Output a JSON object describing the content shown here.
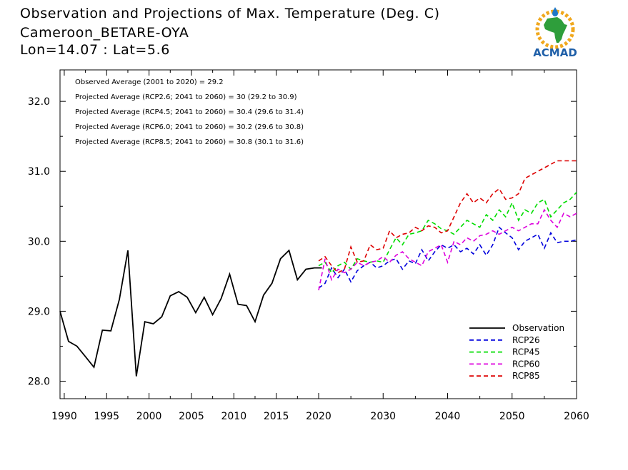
{
  "header": {
    "title": "Observation and Projections of Max. Temperature (Deg. C)",
    "station": "Cameroon_BETARE-OYA",
    "coords": "Lon=14.07 : Lat=5.6"
  },
  "logo": {
    "text": "ACMAD",
    "icon": "africa-sun-logo",
    "colors": {
      "africa": "#2e9e3b",
      "sun": "#f0a81e",
      "text": "#1f5fa8",
      "drop": "#1f78c8"
    }
  },
  "chart_data": {
    "type": "line",
    "xlim": [
      1989.5,
      2060
    ],
    "ylim": [
      27.75,
      32.45
    ],
    "x_ticks": [
      1990,
      1995,
      2000,
      2005,
      2010,
      2015,
      2020,
      2030,
      2040,
      2050,
      2060
    ],
    "x_tick_labels": [
      "1990",
      "1995",
      "2000",
      "2005",
      "2010",
      "2015",
      "2020",
      "2030",
      "2040",
      "2050",
      "2060"
    ],
    "y_ticks": [
      28.0,
      29.0,
      30.0,
      31.0,
      32.0
    ],
    "y_tick_labels": [
      "28.0",
      "29.0",
      "30.0",
      "31.0",
      "32.0"
    ],
    "annotations": [
      "Observed Average (2001 to 2020) = 29.2",
      "Projected Average (RCP2.6; 2041 to 2060) = 30 (29.2 to 30.9)",
      "Projected Average (RCP4.5; 2041 to 2060) = 30.4 (29.6 to 31.4)",
      "Projected Average (RCP6.0; 2041 to 2060) = 30.2 (29.6 to 30.8)",
      "Projected Average (RCP8.5; 2041 to 2060) = 30.8 (30.1 to 31.6)"
    ],
    "legend_position": "bottom-right",
    "series": [
      {
        "name": "Observation",
        "color": "#000000",
        "dash": false,
        "x": [
          1989.5,
          1990.5,
          1991.5,
          1992.5,
          1993.5,
          1994.5,
          1995.5,
          1996.5,
          1997.5,
          1998.5,
          1999.5,
          2000.5,
          2001.5,
          2002.5,
          2003.5,
          2004.5,
          2005.5,
          2006.5,
          2007.5,
          2008.5,
          2009.5,
          2010.5,
          2011.5,
          2012.5,
          2013.5,
          2014.5,
          2015.5,
          2016.5,
          2017.5,
          2018.5,
          2019.5,
          2020.5
        ],
        "values": [
          29.0,
          28.57,
          28.5,
          28.35,
          28.2,
          28.73,
          28.72,
          29.17,
          29.87,
          28.07,
          28.85,
          28.82,
          28.92,
          29.22,
          29.28,
          29.2,
          28.98,
          29.2,
          28.95,
          29.18,
          29.53,
          29.1,
          29.08,
          28.85,
          29.23,
          29.4,
          29.75,
          29.87,
          29.45,
          29.6,
          29.62,
          29.62
        ]
      },
      {
        "name": "RCP26",
        "color": "#0000dd",
        "dash": true,
        "x": [
          2020,
          2021,
          2022,
          2023,
          2024,
          2025,
          2026,
          2027,
          2028,
          2029,
          2030,
          2031,
          2032,
          2033,
          2034,
          2035,
          2036,
          2037,
          2038,
          2039,
          2040,
          2041,
          2042,
          2043,
          2044,
          2045,
          2046,
          2047,
          2048,
          2049,
          2050,
          2051,
          2052,
          2053,
          2054,
          2055,
          2056,
          2057,
          2058,
          2059,
          2060
        ],
        "values": [
          29.33,
          29.4,
          29.62,
          29.48,
          29.6,
          29.42,
          29.58,
          29.65,
          29.7,
          29.62,
          29.65,
          29.72,
          29.75,
          29.6,
          29.72,
          29.68,
          29.88,
          29.72,
          29.85,
          29.95,
          29.9,
          29.95,
          29.85,
          29.9,
          29.82,
          29.95,
          29.8,
          29.95,
          30.2,
          30.12,
          30.05,
          29.88,
          30.0,
          30.05,
          30.1,
          29.9,
          30.12,
          29.98,
          30.0,
          30.0,
          30.02
        ]
      },
      {
        "name": "RCP45",
        "color": "#00dd00",
        "dash": true,
        "x": [
          2020,
          2021,
          2022,
          2023,
          2024,
          2025,
          2026,
          2027,
          2028,
          2029,
          2030,
          2031,
          2032,
          2033,
          2034,
          2035,
          2036,
          2037,
          2038,
          2039,
          2040,
          2041,
          2042,
          2043,
          2044,
          2045,
          2046,
          2047,
          2048,
          2049,
          2050,
          2051,
          2052,
          2053,
          2054,
          2055,
          2056,
          2057,
          2058,
          2059,
          2060
        ],
        "values": [
          29.65,
          29.7,
          29.55,
          29.65,
          29.7,
          29.6,
          29.75,
          29.72,
          29.7,
          29.72,
          29.7,
          29.88,
          30.05,
          29.95,
          30.1,
          30.12,
          30.15,
          30.3,
          30.25,
          30.18,
          30.15,
          30.1,
          30.2,
          30.3,
          30.25,
          30.2,
          30.38,
          30.3,
          30.45,
          30.35,
          30.55,
          30.3,
          30.45,
          30.4,
          30.55,
          30.6,
          30.35,
          30.45,
          30.55,
          30.6,
          30.7
        ]
      },
      {
        "name": "RCP60",
        "color": "#dd00dd",
        "dash": true,
        "x": [
          2020,
          2021,
          2022,
          2023,
          2024,
          2025,
          2026,
          2027,
          2028,
          2029,
          2030,
          2031,
          2032,
          2033,
          2034,
          2035,
          2036,
          2037,
          2038,
          2039,
          2040,
          2041,
          2042,
          2043,
          2044,
          2045,
          2046,
          2047,
          2048,
          2049,
          2050,
          2051,
          2052,
          2053,
          2054,
          2055,
          2056,
          2057,
          2058,
          2059,
          2060
        ],
        "values": [
          29.3,
          29.75,
          29.45,
          29.6,
          29.55,
          29.6,
          29.7,
          29.65,
          29.7,
          29.72,
          29.78,
          29.7,
          29.8,
          29.85,
          29.75,
          29.7,
          29.65,
          29.85,
          29.9,
          29.95,
          29.7,
          30.0,
          29.95,
          30.05,
          30.0,
          30.08,
          30.1,
          30.15,
          30.1,
          30.15,
          30.2,
          30.15,
          30.2,
          30.25,
          30.25,
          30.45,
          30.3,
          30.2,
          30.4,
          30.35,
          30.4
        ]
      },
      {
        "name": "RCP85",
        "color": "#dd0000",
        "dash": true,
        "x": [
          2020,
          2021,
          2022,
          2023,
          2024,
          2025,
          2026,
          2027,
          2028,
          2029,
          2030,
          2031,
          2032,
          2033,
          2034,
          2035,
          2036,
          2037,
          2038,
          2039,
          2040,
          2041,
          2042,
          2043,
          2044,
          2045,
          2046,
          2047,
          2048,
          2049,
          2050,
          2051,
          2052,
          2053,
          2054,
          2055,
          2056,
          2057,
          2058,
          2059,
          2060
        ],
        "values": [
          29.72,
          29.78,
          29.65,
          29.55,
          29.6,
          29.92,
          29.7,
          29.72,
          29.95,
          29.88,
          29.9,
          30.15,
          30.05,
          30.1,
          30.12,
          30.2,
          30.15,
          30.22,
          30.2,
          30.12,
          30.15,
          30.35,
          30.55,
          30.68,
          30.55,
          30.62,
          30.55,
          30.68,
          30.75,
          30.6,
          30.62,
          30.68,
          30.9,
          30.95,
          31.0,
          31.05,
          31.1,
          31.15,
          31.15,
          31.15,
          31.15
        ]
      }
    ]
  }
}
